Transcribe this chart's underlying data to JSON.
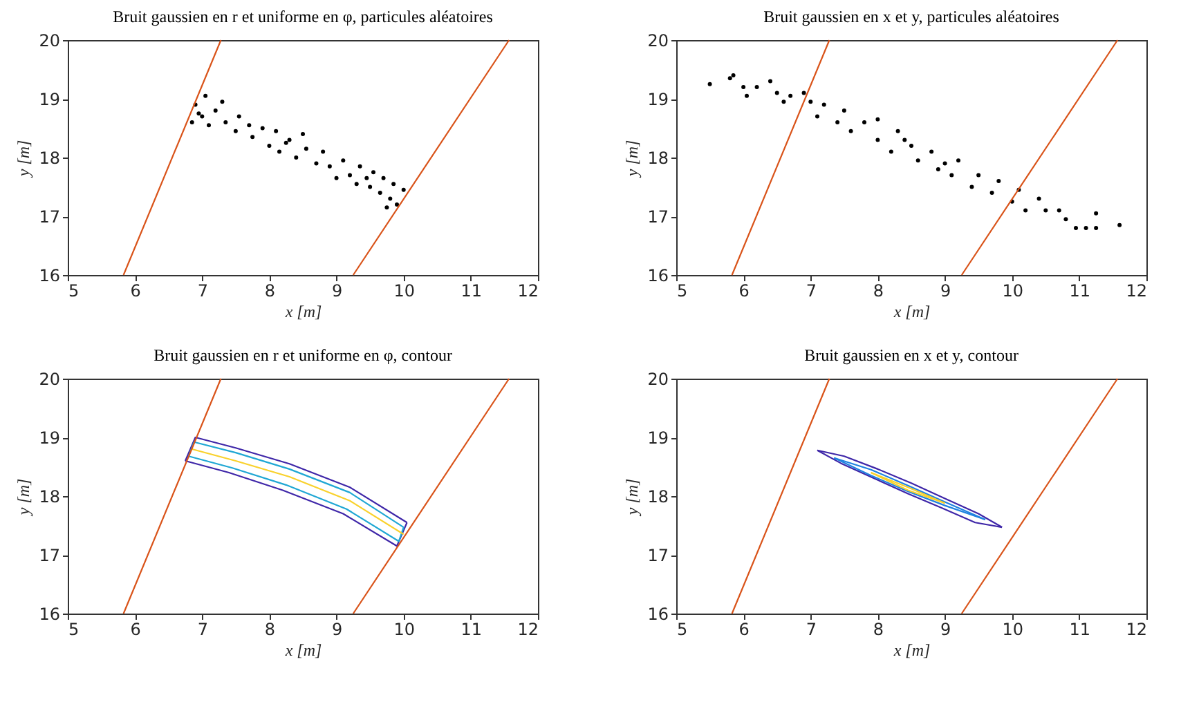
{
  "chart_data": [
    {
      "type": "scatter",
      "title": "Bruit gaussien en r et uniforme en φ, particules aléatoires",
      "xlabel": "x [m]",
      "ylabel": "y [m]",
      "xlim": [
        5,
        12
      ],
      "ylim": [
        16,
        20
      ],
      "xticks": [
        5,
        6,
        7,
        8,
        9,
        10,
        11,
        12
      ],
      "yticks": [
        16,
        17,
        18,
        19,
        20
      ],
      "grid": false,
      "series": [
        {
          "marker": "circle",
          "color": "#000000",
          "x": [
            6.85,
            6.9,
            6.95,
            7.05,
            7.1,
            7.2,
            7.3,
            7.35,
            7.5,
            7.55,
            7.7,
            7.75,
            7.9,
            8.0,
            8.1,
            8.15,
            8.3,
            8.4,
            8.5,
            8.55,
            8.7,
            8.8,
            8.9,
            9.0,
            9.1,
            9.2,
            9.3,
            9.35,
            9.5,
            9.55,
            9.65,
            9.7,
            9.8,
            9.85,
            9.9,
            10.0,
            9.75,
            7.0,
            8.25,
            9.45
          ],
          "values": [
            18.6,
            18.9,
            18.75,
            19.05,
            18.55,
            18.8,
            18.95,
            18.6,
            18.45,
            18.7,
            18.55,
            18.35,
            18.5,
            18.2,
            18.45,
            18.1,
            18.3,
            18.0,
            18.4,
            18.15,
            17.9,
            18.1,
            17.85,
            17.65,
            17.95,
            17.7,
            17.55,
            17.85,
            17.5,
            17.75,
            17.4,
            17.65,
            17.3,
            17.55,
            17.2,
            17.45,
            17.15,
            18.7,
            18.25,
            17.65
          ]
        },
        {
          "type": "line",
          "color": "#d95319",
          "x": [
            5.83,
            7.28
          ],
          "values": [
            16,
            20
          ]
        },
        {
          "type": "line",
          "color": "#d95319",
          "x": [
            9.25,
            11.57
          ],
          "values": [
            16,
            20
          ]
        }
      ]
    },
    {
      "type": "scatter",
      "title": "Bruit gaussien en x et y, particules aléatoires",
      "xlabel": "x [m]",
      "ylabel": "y [m]",
      "xlim": [
        5,
        12
      ],
      "ylim": [
        16,
        20
      ],
      "xticks": [
        5,
        6,
        7,
        8,
        9,
        10,
        11,
        12
      ],
      "yticks": [
        16,
        17,
        18,
        19,
        20
      ],
      "grid": false,
      "series": [
        {
          "marker": "circle",
          "color": "#000000",
          "x": [
            5.5,
            5.8,
            5.85,
            6.0,
            6.05,
            6.2,
            6.4,
            6.5,
            6.6,
            6.7,
            6.9,
            7.0,
            7.1,
            7.2,
            7.4,
            7.5,
            7.6,
            7.8,
            8.0,
            8.0,
            8.2,
            8.3,
            8.5,
            8.6,
            8.8,
            8.9,
            9.1,
            9.2,
            9.4,
            9.5,
            9.7,
            9.8,
            10.0,
            10.1,
            10.2,
            10.4,
            10.5,
            10.7,
            10.8,
            10.95,
            11.1,
            11.25,
            11.25,
            11.6,
            8.4,
            9.0
          ],
          "values": [
            19.25,
            19.35,
            19.4,
            19.2,
            19.05,
            19.2,
            19.3,
            19.1,
            18.95,
            19.05,
            19.1,
            18.95,
            18.7,
            18.9,
            18.6,
            18.8,
            18.45,
            18.6,
            18.3,
            18.65,
            18.1,
            18.45,
            18.2,
            17.95,
            18.1,
            17.8,
            17.7,
            17.95,
            17.5,
            17.7,
            17.4,
            17.6,
            17.25,
            17.45,
            17.1,
            17.3,
            17.1,
            17.1,
            16.95,
            16.8,
            16.8,
            16.8,
            17.05,
            16.85,
            18.3,
            17.9
          ]
        },
        {
          "type": "line",
          "color": "#d95319",
          "x": [
            5.83,
            7.28
          ],
          "values": [
            16,
            20
          ]
        },
        {
          "type": "line",
          "color": "#d95319",
          "x": [
            9.25,
            11.57
          ],
          "values": [
            16,
            20
          ]
        }
      ]
    },
    {
      "type": "line",
      "title": "Bruit gaussien en r et uniforme en φ, contour",
      "xlabel": "x [m]",
      "ylabel": "y [m]",
      "xlim": [
        5,
        12
      ],
      "ylim": [
        16,
        20
      ],
      "xticks": [
        5,
        6,
        7,
        8,
        9,
        10,
        11,
        12
      ],
      "yticks": [
        16,
        17,
        18,
        19,
        20
      ],
      "grid": false,
      "series": [
        {
          "color": "#3e26a8",
          "x": [
            6.75,
            6.9,
            7.5,
            8.3,
            9.2,
            10.05
          ],
          "values": [
            18.6,
            19.0,
            18.82,
            18.55,
            18.15,
            17.55
          ]
        },
        {
          "color": "#3e26a8",
          "x": [
            6.75,
            7.4,
            8.2,
            9.1,
            9.9,
            10.05
          ],
          "values": [
            18.6,
            18.4,
            18.1,
            17.7,
            17.15,
            17.55
          ]
        },
        {
          "color": "#1fa7d4",
          "x": [
            6.8,
            6.88,
            7.5,
            8.3,
            9.2,
            10.0
          ],
          "values": [
            18.68,
            18.92,
            18.74,
            18.46,
            18.06,
            17.47
          ]
        },
        {
          "color": "#1fa7d4",
          "x": [
            6.8,
            7.45,
            8.25,
            9.15,
            9.93,
            10.0
          ],
          "values": [
            18.68,
            18.48,
            18.19,
            17.78,
            17.23,
            17.47
          ]
        },
        {
          "color": "#f9d12b",
          "x": [
            6.85,
            7.5,
            8.3,
            9.2,
            10.0
          ],
          "values": [
            18.8,
            18.6,
            18.33,
            17.92,
            17.35
          ]
        },
        {
          "color": "#d95319",
          "x": [
            5.83,
            7.28
          ],
          "values": [
            16,
            20
          ]
        },
        {
          "color": "#d95319",
          "x": [
            9.25,
            11.57
          ],
          "values": [
            16,
            20
          ]
        }
      ]
    },
    {
      "type": "line",
      "title": "Bruit gaussien en x et y, contour",
      "xlabel": "x [m]",
      "ylabel": "y [m]",
      "xlim": [
        5,
        12
      ],
      "ylim": [
        16,
        20
      ],
      "xticks": [
        5,
        6,
        7,
        8,
        9,
        10,
        11,
        12
      ],
      "yticks": [
        16,
        17,
        18,
        19,
        20
      ],
      "grid": false,
      "series": [
        {
          "color": "#3e26a8",
          "x": [
            7.1,
            7.5,
            8.0,
            8.5,
            9.0,
            9.5,
            9.85
          ],
          "values": [
            18.78,
            18.68,
            18.46,
            18.22,
            17.96,
            17.7,
            17.47
          ]
        },
        {
          "color": "#3e26a8",
          "x": [
            7.1,
            7.45,
            7.95,
            8.45,
            8.95,
            9.45,
            9.85
          ],
          "values": [
            18.78,
            18.56,
            18.3,
            18.04,
            17.8,
            17.55,
            17.47
          ]
        },
        {
          "color": "#1f82e0",
          "x": [
            7.35,
            7.9,
            8.45,
            9.0,
            9.6
          ],
          "values": [
            18.65,
            18.45,
            18.18,
            17.9,
            17.6
          ]
        },
        {
          "color": "#1f82e0",
          "x": [
            7.35,
            7.9,
            8.45,
            9.0,
            9.6
          ],
          "values": [
            18.65,
            18.35,
            18.08,
            17.84,
            17.6
          ]
        },
        {
          "color": "#f9d12b",
          "x": [
            7.9,
            8.45,
            9.0
          ],
          "values": [
            18.4,
            18.15,
            17.88
          ]
        },
        {
          "color": "#f9d12b",
          "x": [
            7.9,
            8.45,
            9.0
          ],
          "values": [
            18.4,
            18.1,
            17.88
          ]
        },
        {
          "color": "#d95319",
          "x": [
            5.83,
            7.28
          ],
          "values": [
            16,
            20
          ]
        },
        {
          "color": "#d95319",
          "x": [
            9.25,
            11.57
          ],
          "values": [
            16,
            20
          ]
        }
      ]
    }
  ]
}
